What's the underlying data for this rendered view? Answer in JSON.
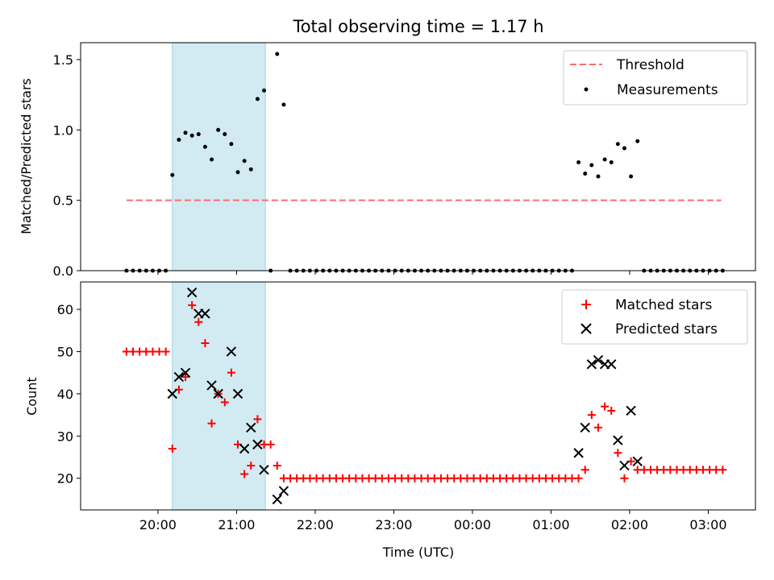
{
  "chart_data": {
    "type": "scatter",
    "title": "Total observing time = 1.17 h",
    "xlabel": "Time (UTC)",
    "x_ticks": [
      "20:00",
      "21:00",
      "22:00",
      "23:00",
      "00:00",
      "01:00",
      "02:00",
      "03:00"
    ],
    "highlight_span": [
      "20:11",
      "21:22"
    ],
    "highlight_color": "#add8e6",
    "panels": [
      {
        "ylabel": "Matched/Predicted stars",
        "ylim": [
          0,
          1.62
        ],
        "y_ticks": [
          0.0,
          0.5,
          1.0,
          1.5
        ],
        "y_tick_labels": [
          "0.0",
          "0.5",
          "1.0",
          "1.5"
        ],
        "legend_position": "top-right",
        "threshold": {
          "name": "Threshold",
          "value": 0.5,
          "x_range": [
            "19:36",
            "03:10"
          ],
          "color": "#ff6b6b"
        },
        "series": [
          {
            "name": "Measurements",
            "marker": "dot",
            "color": "#000000",
            "x": [
              "19:36",
              "19:41",
              "19:46",
              "19:51",
              "19:56",
              "20:01",
              "20:06",
              "20:11",
              "20:16",
              "20:21",
              "20:26",
              "20:31",
              "20:36",
              "20:41",
              "20:46",
              "20:51",
              "20:56",
              "21:01",
              "21:06",
              "21:11",
              "21:16",
              "21:21",
              "21:26",
              "21:31",
              "21:36",
              "21:41",
              "21:46",
              "21:51",
              "21:56",
              "22:01",
              "22:06",
              "22:11",
              "22:16",
              "22:21",
              "22:26",
              "22:31",
              "22:36",
              "22:41",
              "22:46",
              "22:51",
              "22:56",
              "23:01",
              "23:06",
              "23:11",
              "23:16",
              "23:21",
              "23:26",
              "23:31",
              "23:36",
              "23:41",
              "23:46",
              "23:51",
              "23:56",
              "00:01",
              "00:06",
              "00:11",
              "00:16",
              "00:21",
              "00:26",
              "00:31",
              "00:36",
              "00:41",
              "00:46",
              "00:51",
              "00:56",
              "01:01",
              "01:06",
              "01:11",
              "01:16",
              "01:21",
              "01:26",
              "01:31",
              "01:36",
              "01:41",
              "01:46",
              "01:51",
              "01:56",
              "02:01",
              "02:06",
              "02:11",
              "02:16",
              "02:21",
              "02:26",
              "02:31",
              "02:36",
              "02:41",
              "02:46",
              "02:51",
              "02:56",
              "03:01",
              "03:06",
              "03:11"
            ],
            "y": [
              0,
              0,
              0,
              0,
              0,
              0,
              0,
              0.68,
              0.93,
              0.98,
              0.96,
              0.97,
              0.88,
              0.79,
              1.0,
              0.97,
              0.9,
              0.7,
              0.78,
              0.72,
              1.22,
              1.28,
              0,
              1.54,
              1.18,
              0,
              0,
              0,
              0,
              0,
              0,
              0,
              0,
              0,
              0,
              0,
              0,
              0,
              0,
              0,
              0,
              0,
              0,
              0,
              0,
              0,
              0,
              0,
              0,
              0,
              0,
              0,
              0,
              0,
              0,
              0,
              0,
              0,
              0,
              0,
              0,
              0,
              0,
              0,
              0,
              0,
              0,
              0,
              0,
              0.77,
              0.69,
              0.75,
              0.67,
              0.79,
              0.77,
              0.9,
              0.87,
              0.67,
              0.92,
              0,
              0,
              0,
              0,
              0,
              0,
              0,
              0,
              0,
              0,
              0,
              0,
              0
            ]
          }
        ]
      },
      {
        "ylabel": "Count",
        "ylim": [
          12.5,
          66.5
        ],
        "y_ticks": [
          20,
          30,
          40,
          50,
          60
        ],
        "y_tick_labels": [
          "20",
          "30",
          "40",
          "50",
          "60"
        ],
        "legend_position": "top-right",
        "series": [
          {
            "name": "Matched stars",
            "marker": "plus",
            "color": "#ff0000",
            "x": [
              "19:36",
              "19:41",
              "19:46",
              "19:51",
              "19:56",
              "20:01",
              "20:06",
              "20:11",
              "20:16",
              "20:21",
              "20:26",
              "20:31",
              "20:36",
              "20:41",
              "20:46",
              "20:51",
              "20:56",
              "21:01",
              "21:06",
              "21:11",
              "21:16",
              "21:21",
              "21:26",
              "21:31",
              "21:36",
              "21:41",
              "21:46",
              "21:51",
              "21:56",
              "22:01",
              "22:06",
              "22:11",
              "22:16",
              "22:21",
              "22:26",
              "22:31",
              "22:36",
              "22:41",
              "22:46",
              "22:51",
              "22:56",
              "23:01",
              "23:06",
              "23:11",
              "23:16",
              "23:21",
              "23:26",
              "23:31",
              "23:36",
              "23:41",
              "23:46",
              "23:51",
              "23:56",
              "00:01",
              "00:06",
              "00:11",
              "00:16",
              "00:21",
              "00:26",
              "00:31",
              "00:36",
              "00:41",
              "00:46",
              "00:51",
              "00:56",
              "01:01",
              "01:06",
              "01:11",
              "01:16",
              "01:21",
              "01:26",
              "01:31",
              "01:36",
              "01:41",
              "01:46",
              "01:51",
              "01:56",
              "02:01",
              "02:06",
              "02:11",
              "02:16",
              "02:21",
              "02:26",
              "02:31",
              "02:36",
              "02:41",
              "02:46",
              "02:51",
              "02:56",
              "03:01",
              "03:06",
              "03:11"
            ],
            "y": [
              50,
              50,
              50,
              50,
              50,
              50,
              50,
              27,
              41,
              44,
              61,
              57,
              52,
              33,
              40,
              38,
              45,
              28,
              21,
              23,
              34,
              28,
              28,
              23,
              20,
              20,
              20,
              20,
              20,
              20,
              20,
              20,
              20,
              20,
              20,
              20,
              20,
              20,
              20,
              20,
              20,
              20,
              20,
              20,
              20,
              20,
              20,
              20,
              20,
              20,
              20,
              20,
              20,
              20,
              20,
              20,
              20,
              20,
              20,
              20,
              20,
              20,
              20,
              20,
              20,
              20,
              20,
              20,
              20,
              20,
              22,
              35,
              32,
              37,
              36,
              26,
              20,
              24,
              22,
              22,
              22,
              22,
              22,
              22,
              22,
              22,
              22,
              22,
              22,
              22,
              22,
              22
            ]
          },
          {
            "name": "Predicted stars",
            "marker": "x",
            "color": "#000000",
            "x": [
              "20:11",
              "20:16",
              "20:21",
              "20:26",
              "20:31",
              "20:36",
              "20:41",
              "20:46",
              "20:56",
              "21:01",
              "21:06",
              "21:11",
              "21:16",
              "21:21",
              "21:31",
              "21:36",
              "01:21",
              "01:26",
              "01:31",
              "01:36",
              "01:41",
              "01:46",
              "01:51",
              "01:56",
              "02:01",
              "02:06"
            ],
            "y": [
              40,
              44,
              45,
              64,
              59,
              59,
              42,
              40,
              50,
              40,
              27,
              32,
              28,
              22,
              15,
              17,
              26,
              32,
              47,
              48,
              47,
              47,
              29,
              23,
              36,
              24
            ]
          }
        ]
      }
    ]
  }
}
